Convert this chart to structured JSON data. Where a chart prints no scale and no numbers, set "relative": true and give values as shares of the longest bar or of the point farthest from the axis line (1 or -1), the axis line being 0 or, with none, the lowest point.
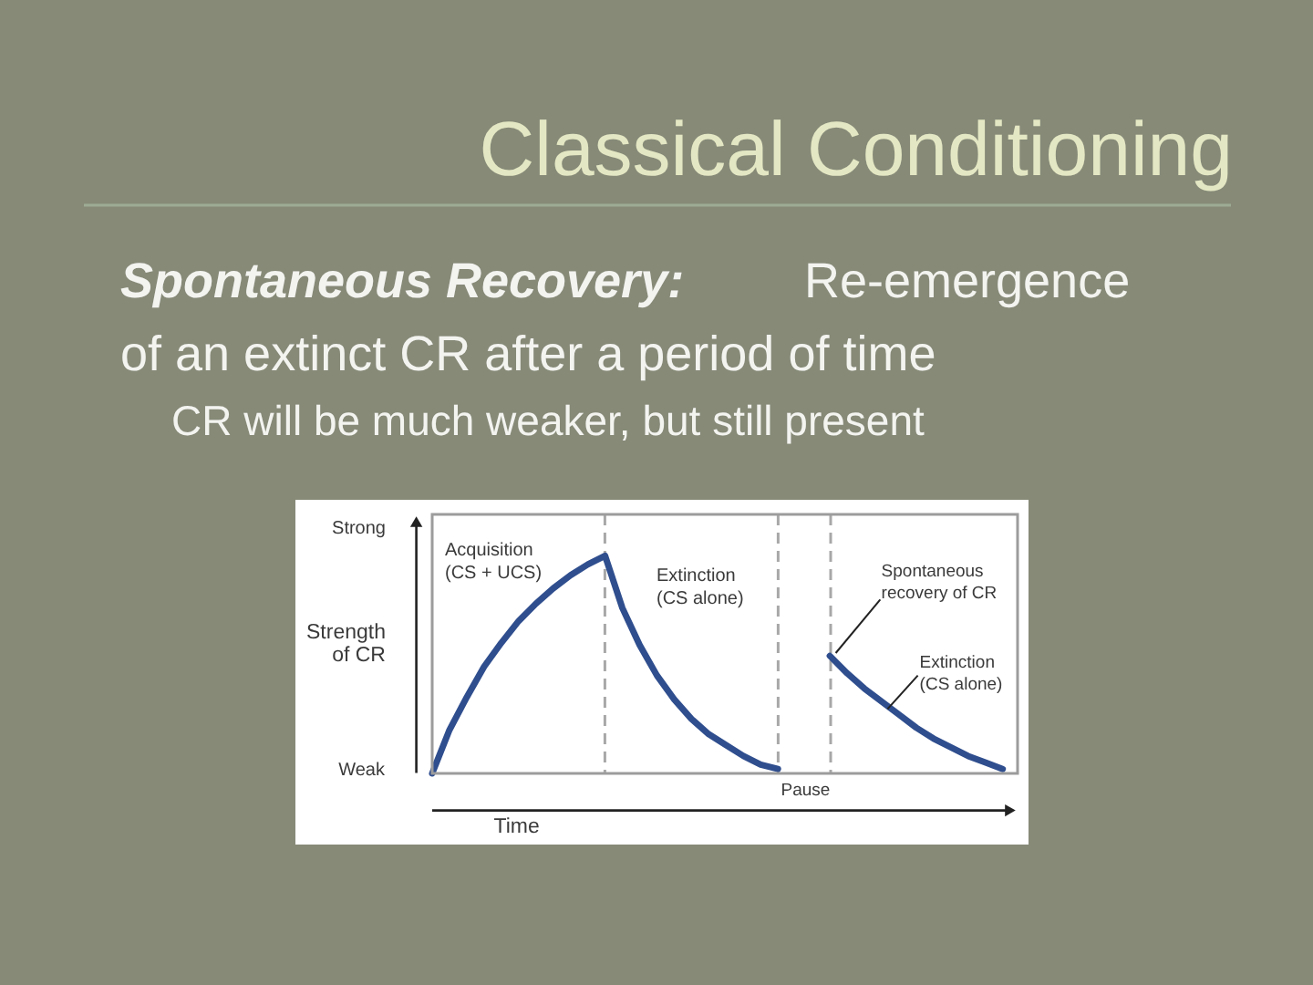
{
  "chart_data": {
    "type": "line",
    "title": "Classical Conditioning",
    "xlabel": "Time",
    "ylabel": "Strength\nof CR",
    "categories": [
      null,
      null,
      null,
      null,
      null,
      null,
      null,
      null,
      null,
      null,
      null,
      null,
      null,
      null,
      null,
      null,
      null,
      null,
      null,
      null,
      null,
      null,
      null,
      null,
      null,
      null,
      null,
      null,
      null,
      null,
      null,
      null,
      null,
      null
    ],
    "series": [
      {
        "color": "#2f4e8e",
        "values": [
          0,
          0.2,
          0.35,
          0.49,
          0.6,
          0.7,
          0.78,
          0.85,
          0.91,
          0.96,
          1,
          0.76,
          0.59,
          0.45,
          0.34,
          0.25,
          0.18,
          0.13,
          0.08,
          0.04,
          0.02,
          null,
          null,
          null,
          null,
          null,
          null,
          null,
          null,
          null,
          null,
          null,
          null,
          null
        ]
      },
      {
        "color": "#2f4e8e",
        "values": [
          null,
          null,
          null,
          null,
          null,
          null,
          null,
          null,
          null,
          null,
          null,
          null,
          null,
          null,
          null,
          null,
          null,
          null,
          null,
          null,
          null,
          null,
          null,
          0.54,
          0.46,
          0.39,
          0.33,
          0.27,
          0.21,
          0.16,
          0.12,
          0.08,
          0.05,
          0.02
        ]
      }
    ],
    "relative": true,
    "grid": "x",
    "annotations": [
      "Spontaneous Recovery:",
      "Re-emergence",
      "of an extinct CR after a period of time",
      "CR will be much weaker, but still present",
      "Strong",
      "Weak",
      "Acquisition\n(CS + UCS)",
      "Extinction\n(CS alone)",
      "Pause",
      "Spontaneous\nrecovery of CR",
      "Extinction\n(CS alone)"
    ]
  }
}
